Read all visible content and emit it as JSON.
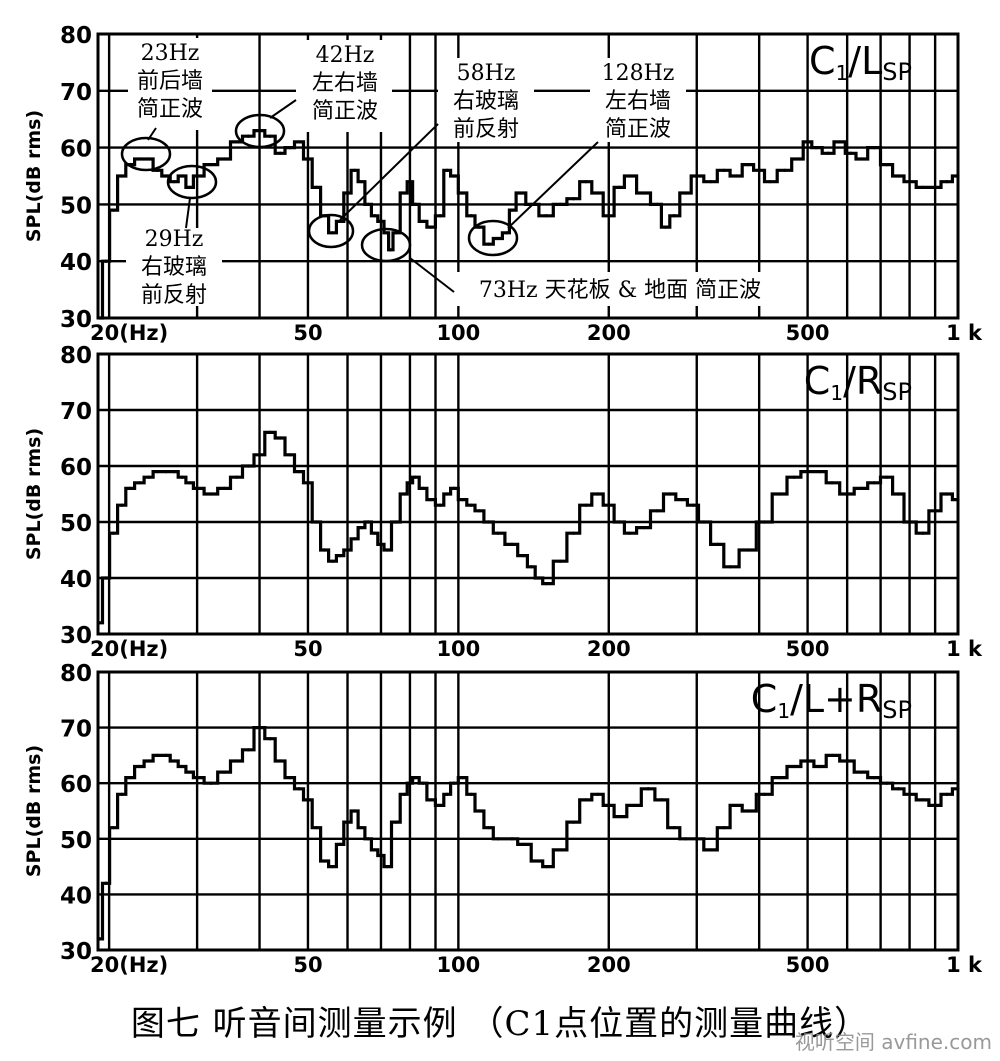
{
  "caption": "图七 听音间测量示例 （C1点位置的测量曲线）",
  "watermark": "视听空间 avfine.com",
  "chart_data": [
    {
      "type": "line",
      "title_main": "C",
      "title_sub": "1",
      "title_rest": "/L",
      "title_rest_sub": "SP",
      "ylabel": "SPL(dB rms)",
      "x_scale": "log",
      "xlim": [
        19,
        1000
      ],
      "ylim": [
        30,
        80
      ],
      "x_ticks": [
        {
          "v": 20,
          "label": "20(Hz)"
        },
        {
          "v": 50,
          "label": "50"
        },
        {
          "v": 100,
          "label": "100"
        },
        {
          "v": 200,
          "label": "200"
        },
        {
          "v": 500,
          "label": "500"
        },
        {
          "v": 1000,
          "label": "1 k"
        }
      ],
      "y_ticks": [
        30,
        40,
        50,
        60,
        70,
        80
      ],
      "grid": true,
      "series": [
        {
          "x": [
            19.1,
            19.7,
            20.4,
            21.2,
            22.0,
            23.0,
            24.0,
            25.0,
            26.0,
            27.0,
            28.0,
            29.0,
            30.0,
            32.0,
            34.0,
            36.0,
            38.0,
            40.0,
            42.0,
            44.0,
            46.0,
            48.0,
            50.0,
            52.0,
            54.0,
            56.0,
            58.0,
            60.0,
            62.0,
            64.0,
            66.0,
            68.0,
            70.0,
            72.0,
            73.0,
            75.0,
            78.0,
            80.0,
            82.0,
            85.0,
            88.0,
            92.0,
            95.0,
            98.0,
            102.0,
            106.0,
            110.0,
            115.0,
            120.0,
            125.0,
            128.0,
            133.0,
            140.0,
            150.0,
            160.0,
            170.0,
            180.0,
            190.0,
            200.0,
            210.0,
            220.0,
            235.0,
            250.0,
            260.0,
            270.0,
            285.0,
            300.0,
            320.0,
            340.0,
            360.0,
            380.0,
            400.0,
            420.0,
            450.0,
            480.0,
            500.0,
            520.0,
            550.0,
            580.0,
            610.0,
            640.0,
            680.0,
            720.0,
            760.0,
            800.0,
            850.0,
            900.0,
            950.0,
            1000.0
          ],
          "y": [
            30,
            40,
            49,
            55,
            57,
            58,
            58,
            56,
            55,
            54,
            55,
            53,
            55,
            57,
            58,
            61,
            62,
            63,
            62,
            59,
            60,
            61,
            58,
            53,
            48,
            45,
            47,
            52,
            56,
            54,
            50,
            48,
            47,
            45,
            42,
            45,
            52,
            54,
            50,
            47,
            46,
            48,
            56,
            55,
            52,
            48,
            46,
            43,
            44,
            45,
            49,
            52,
            50,
            48,
            50,
            51,
            54,
            52,
            48,
            53,
            55,
            52,
            50,
            46,
            48,
            52,
            55,
            54,
            56,
            55,
            57,
            56,
            54,
            56,
            58,
            61,
            60,
            59,
            61,
            59,
            58,
            60,
            57,
            55,
            54,
            53,
            53,
            54,
            55
          ]
        }
      ]
    },
    {
      "type": "line",
      "title_main": "C",
      "title_sub": "1",
      "title_rest": "/R",
      "title_rest_sub": "SP",
      "ylabel": "SPL(dB rms)",
      "x_scale": "log",
      "xlim": [
        19,
        1000
      ],
      "ylim": [
        30,
        80
      ],
      "x_ticks": [
        {
          "v": 20,
          "label": "20(Hz)"
        },
        {
          "v": 50,
          "label": "50"
        },
        {
          "v": 100,
          "label": "100"
        },
        {
          "v": 200,
          "label": "200"
        },
        {
          "v": 500,
          "label": "500"
        },
        {
          "v": 1000,
          "label": "1 k"
        }
      ],
      "y_ticks": [
        30,
        40,
        50,
        60,
        70,
        80
      ],
      "grid": true,
      "series": [
        {
          "x": [
            19.1,
            19.7,
            20.4,
            21.2,
            22.0,
            23.0,
            24.0,
            25.0,
            26.0,
            27.0,
            28.0,
            29.0,
            30.0,
            32.0,
            34.0,
            36.0,
            38.0,
            40.0,
            42.0,
            44.0,
            46.0,
            48.0,
            50.0,
            52.0,
            54.0,
            56.0,
            58.0,
            60.0,
            62.0,
            64.0,
            66.0,
            68.0,
            70.0,
            72.0,
            75.0,
            78.0,
            80.0,
            82.0,
            85.0,
            88.0,
            92.0,
            95.0,
            98.0,
            102.0,
            106.0,
            110.0,
            115.0,
            120.0,
            128.0,
            135.0,
            140.0,
            145.0,
            150.0,
            160.0,
            170.0,
            180.0,
            190.0,
            200.0,
            210.0,
            220.0,
            235.0,
            250.0,
            265.0,
            280.0,
            295.0,
            310.0,
            330.0,
            350.0,
            380.0,
            410.0,
            440.0,
            470.0,
            500.0,
            530.0,
            560.0,
            600.0,
            640.0,
            680.0,
            720.0,
            760.0,
            800.0,
            850.0,
            900.0,
            950.0,
            1000.0
          ],
          "y": [
            32,
            40,
            48,
            53,
            56,
            57,
            58,
            59,
            59,
            59,
            58,
            57,
            56,
            55,
            56,
            58,
            60,
            62,
            66,
            65,
            62,
            59,
            57,
            50,
            45,
            43,
            44,
            45,
            47,
            49,
            50,
            48,
            46,
            45,
            50,
            55,
            57,
            58,
            56,
            54,
            53,
            55,
            56,
            54,
            53,
            52,
            50,
            48,
            46,
            44,
            42,
            40,
            39,
            43,
            48,
            53,
            55,
            53,
            50,
            48,
            49,
            52,
            55,
            54,
            53,
            50,
            46,
            42,
            45,
            50,
            55,
            58,
            59,
            59,
            57,
            55,
            56,
            57,
            58,
            55,
            50,
            48,
            52,
            55,
            54
          ]
        }
      ]
    },
    {
      "type": "line",
      "title_main": "C",
      "title_sub": "1",
      "title_rest": "/L+R",
      "title_rest_sub": "SP",
      "ylabel": "SPL(dB rms)",
      "x_scale": "log",
      "xlim": [
        19,
        1000
      ],
      "ylim": [
        30,
        80
      ],
      "x_ticks": [
        {
          "v": 20,
          "label": "20(Hz)"
        },
        {
          "v": 50,
          "label": "50"
        },
        {
          "v": 100,
          "label": "100"
        },
        {
          "v": 200,
          "label": "200"
        },
        {
          "v": 500,
          "label": "500"
        },
        {
          "v": 1000,
          "label": "1 k"
        }
      ],
      "y_ticks": [
        30,
        40,
        50,
        60,
        70,
        80
      ],
      "grid": true,
      "series": [
        {
          "x": [
            19.1,
            19.7,
            20.4,
            21.2,
            22.0,
            23.0,
            24.0,
            25.0,
            26.0,
            27.0,
            28.0,
            29.0,
            30.0,
            32.0,
            34.0,
            36.0,
            38.0,
            40.0,
            42.0,
            44.0,
            46.0,
            48.0,
            50.0,
            52.0,
            54.0,
            56.0,
            58.0,
            60.0,
            62.0,
            64.0,
            66.0,
            68.0,
            70.0,
            72.0,
            75.0,
            78.0,
            80.0,
            82.0,
            85.0,
            88.0,
            92.0,
            95.0,
            98.0,
            102.0,
            106.0,
            110.0,
            115.0,
            120.0,
            128.0,
            135.0,
            145.0,
            150.0,
            160.0,
            170.0,
            180.0,
            190.0,
            200.0,
            210.0,
            225.0,
            240.0,
            255.0,
            270.0,
            285.0,
            300.0,
            320.0,
            340.0,
            360.0,
            380.0,
            410.0,
            440.0,
            470.0,
            500.0,
            530.0,
            560.0,
            600.0,
            640.0,
            680.0,
            720.0,
            760.0,
            800.0,
            850.0,
            900.0,
            950.0,
            1000.0
          ],
          "y": [
            32,
            42,
            52,
            58,
            61,
            63,
            64,
            65,
            65,
            64,
            63,
            62,
            61,
            60,
            62,
            64,
            66,
            70,
            68,
            64,
            61,
            59,
            57,
            52,
            46,
            45,
            49,
            53,
            55,
            52,
            50,
            48,
            47,
            45,
            53,
            58,
            60,
            61,
            60,
            57,
            56,
            58,
            60,
            61,
            58,
            55,
            52,
            50,
            50,
            49,
            46,
            45,
            48,
            53,
            57,
            58,
            56,
            54,
            56,
            59,
            57,
            52,
            50,
            50,
            48,
            52,
            56,
            55,
            58,
            61,
            63,
            64,
            63,
            65,
            64,
            62,
            61,
            60,
            59,
            58,
            57,
            56,
            58,
            59
          ]
        }
      ]
    }
  ],
  "annotations": [
    {
      "lines": [
        "23Hz",
        "前后墙",
        "简正波"
      ]
    },
    {
      "lines": [
        "29Hz",
        "右玻璃",
        "前反射"
      ]
    },
    {
      "lines": [
        "42Hz",
        "左右墙",
        "简正波"
      ]
    },
    {
      "lines": [
        "58Hz",
        "右玻璃",
        "前反射"
      ]
    },
    {
      "lines": [
        "128Hz",
        "左右墙",
        "简正波"
      ]
    },
    {
      "lines": [
        "73Hz 天花板 & 地面 简正波"
      ]
    }
  ]
}
